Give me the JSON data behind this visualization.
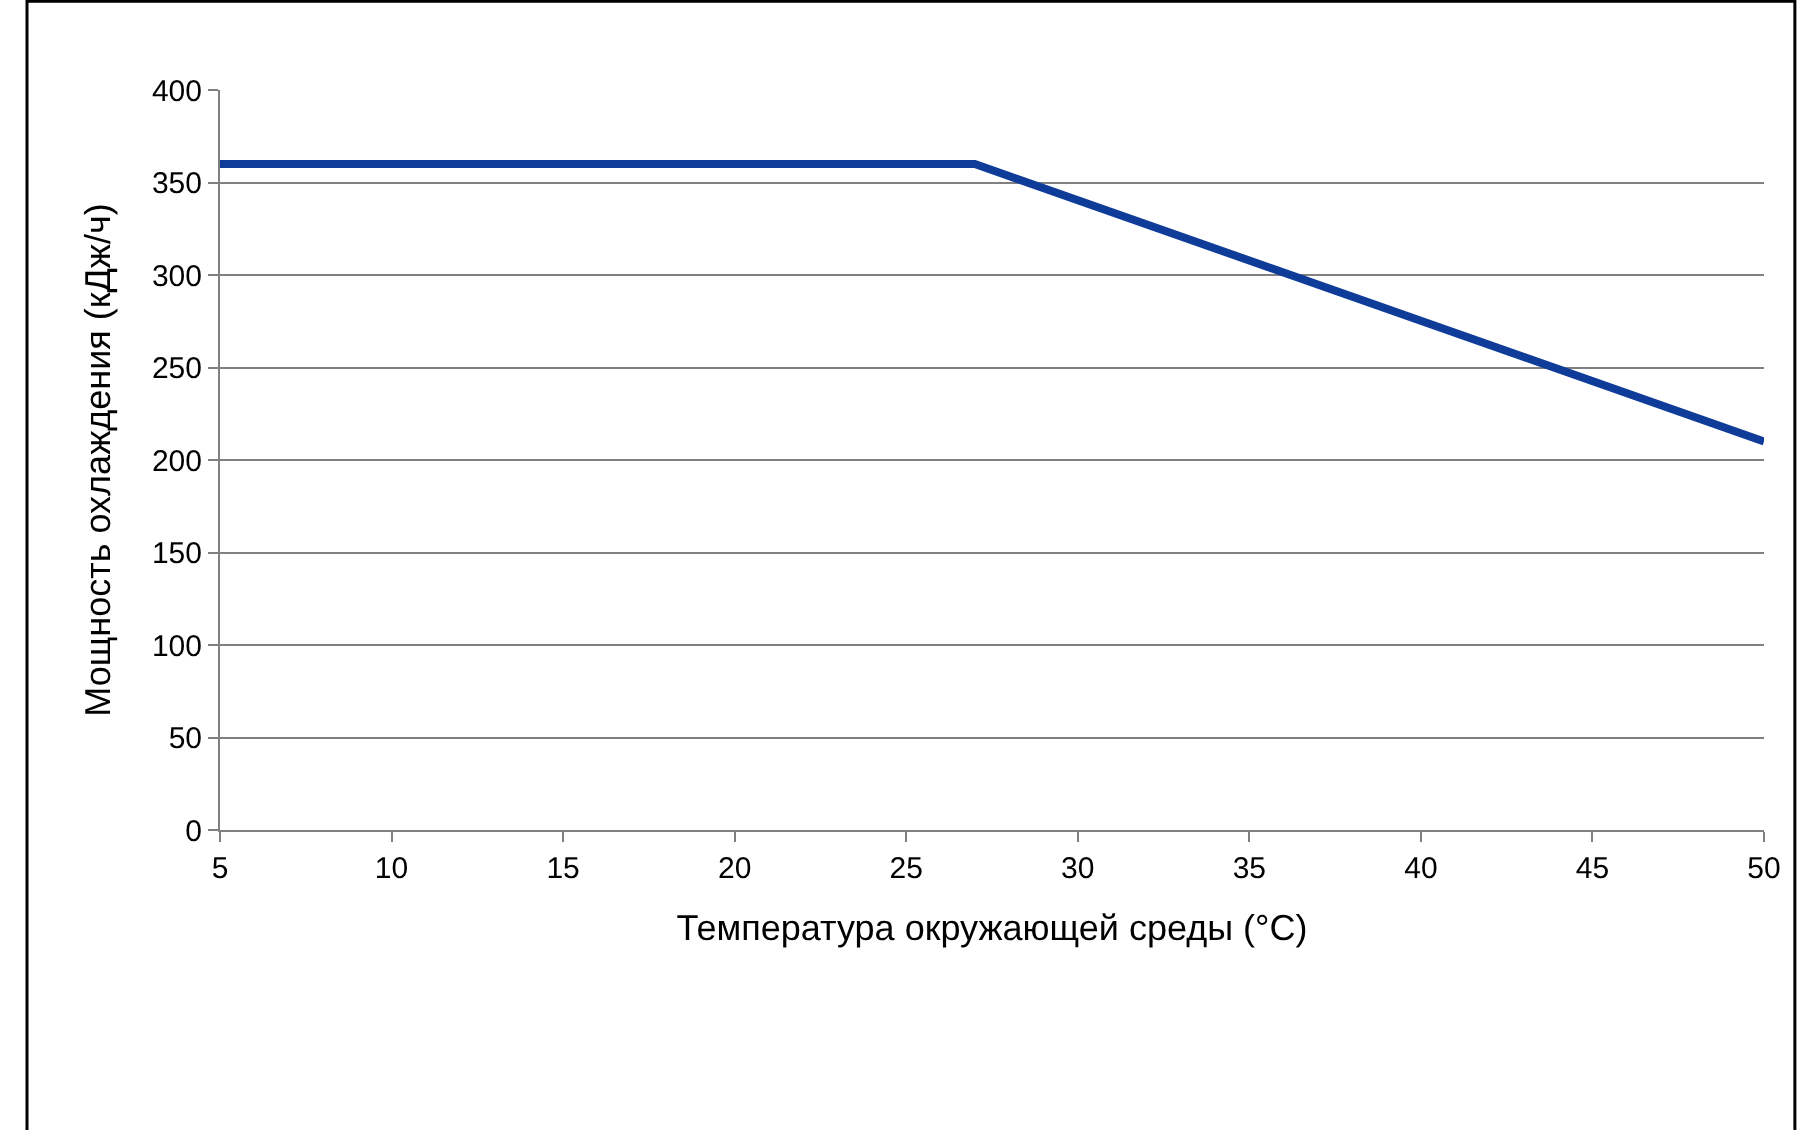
{
  "chart_data": {
    "type": "line",
    "xlabel": "Температура окружающей среды (°C)",
    "ylabel": "Мощность охлаждения (кДж/ч)",
    "x": [
      5,
      27,
      50
    ],
    "series": [
      {
        "color": "#0f3b99",
        "values": [
          360,
          360,
          210
        ]
      }
    ],
    "xlim": [
      5,
      50
    ],
    "xticks": [
      5,
      10,
      15,
      20,
      25,
      30,
      35,
      40,
      45,
      50
    ],
    "ylim": [
      0,
      400
    ],
    "yticks": [
      0,
      50,
      100,
      150,
      200,
      250,
      300,
      350,
      400
    ],
    "grid": "y",
    "marker": "none",
    "line_style": "solid"
  }
}
